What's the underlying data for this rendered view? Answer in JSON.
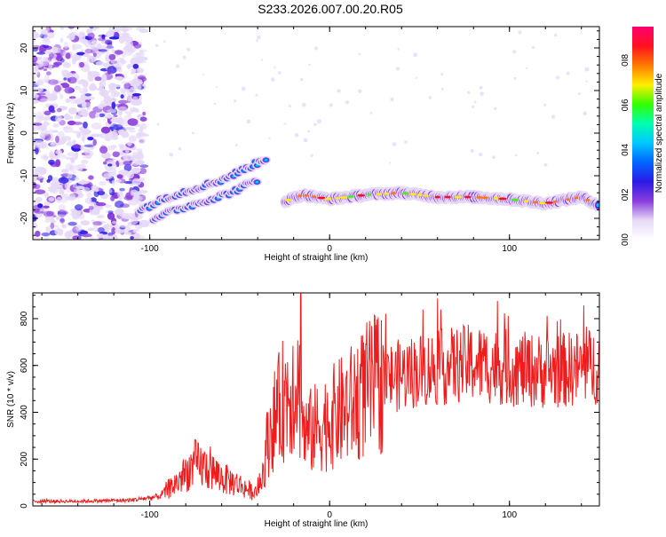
{
  "title": "S233.2026.007.00.20.R05",
  "chart_data": [
    {
      "type": "heatmap",
      "xlabel": "Height of straight line (km)",
      "ylabel": "Frequency (Hz)",
      "xlim": [
        -165,
        150
      ],
      "ylim": [
        -25,
        25
      ],
      "xticks": [
        -100,
        0,
        100
      ],
      "xtick_labels": [
        "-100",
        "0",
        "100"
      ],
      "yticks": [
        -20,
        -10,
        0,
        10,
        20
      ],
      "ytick_labels": [
        "-20",
        "-10",
        "0",
        "10",
        "20"
      ],
      "colorbar": {
        "label": "Normalized spectral amplitude",
        "range": [
          0,
          0.95
        ],
        "ticks": [
          0.0,
          0.2,
          0.4,
          0.6,
          0.8
        ],
        "tick_labels": [
          "0.0",
          "0.2",
          "0.4",
          "0.6",
          "0.8"
        ],
        "colormap": [
          "#ffffff",
          "#e6d9f7",
          "#8a3ddc",
          "#2a1ae6",
          "#0066ff",
          "#00c8ff",
          "#00ffb0",
          "#33ff00",
          "#ffee00",
          "#ff7a00",
          "#ff1020",
          "#ff0070"
        ]
      },
      "features": {
        "noise_region_x": [
          -165,
          -103
        ],
        "ridge_a": {
          "x": [
            -105,
            -90,
            -75,
            -60,
            -45,
            -35
          ],
          "y": [
            -18,
            -15,
            -13,
            -11,
            -8,
            -6
          ]
        },
        "ridge_b": {
          "x": [
            -98,
            -85,
            -70,
            -55,
            -40
          ],
          "y": [
            -20,
            -18,
            -16,
            -14,
            -11
          ]
        },
        "horizontal_band": {
          "x": [
            -25,
            -15,
            0,
            20,
            40,
            60,
            80,
            100,
            120,
            140,
            150
          ],
          "y": [
            -16,
            -14.5,
            -15.5,
            -14.5,
            -14,
            -15,
            -15,
            -15.5,
            -16.5,
            -15,
            -17
          ]
        }
      }
    },
    {
      "type": "line",
      "xlabel": "Height of straight line (km)",
      "ylabel": "SNR (10 * v/v)",
      "xlim": [
        -165,
        150
      ],
      "ylim": [
        0,
        910
      ],
      "xticks": [
        -100,
        0,
        100
      ],
      "xtick_labels": [
        "-100",
        "0",
        "100"
      ],
      "yticks": [
        0,
        200,
        400,
        600,
        800
      ],
      "ytick_labels": [
        "0",
        "200",
        "400",
        "600",
        "800"
      ],
      "series": [
        {
          "color": "#ee1c1c",
          "envelope_x": [
            -165,
            -140,
            -110,
            -95,
            -85,
            -75,
            -68,
            -60,
            -50,
            -42,
            -38,
            -34,
            -30,
            -26,
            -22,
            -18,
            -14,
            -8,
            0,
            10,
            20,
            30,
            40,
            50,
            60,
            70,
            80,
            90,
            100,
            110,
            120,
            130,
            140,
            150
          ],
          "envelope_y": [
            20,
            20,
            25,
            40,
            100,
            180,
            160,
            120,
            90,
            55,
            100,
            300,
            380,
            450,
            500,
            550,
            300,
            330,
            370,
            420,
            490,
            540,
            560,
            580,
            590,
            600,
            610,
            600,
            590,
            580,
            575,
            580,
            590,
            600
          ],
          "spike": {
            "x": -16,
            "y": 905
          }
        }
      ]
    }
  ]
}
